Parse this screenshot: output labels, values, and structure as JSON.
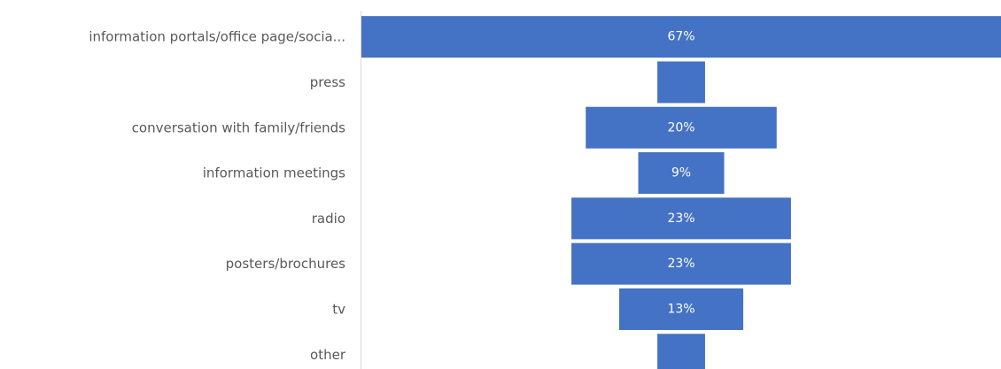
{
  "chart_data": {
    "type": "bar",
    "subtype": "funnel",
    "orientation": "horizontal",
    "title": "",
    "xlabel": "",
    "ylabel": "",
    "categories": [
      "information portals/office page/socia...",
      "press",
      "conversation with family/friends",
      "information meetings",
      "radio",
      "posters/brochures",
      "tv",
      "other"
    ],
    "values": [
      67,
      5,
      20,
      9,
      23,
      23,
      13,
      5
    ],
    "data_labels": [
      "67%",
      "",
      "20%",
      "9%",
      "23%",
      "23%",
      "13%",
      ""
    ],
    "unit": "%",
    "bar_color": "#4472c4",
    "legend": "none",
    "grid": false
  }
}
